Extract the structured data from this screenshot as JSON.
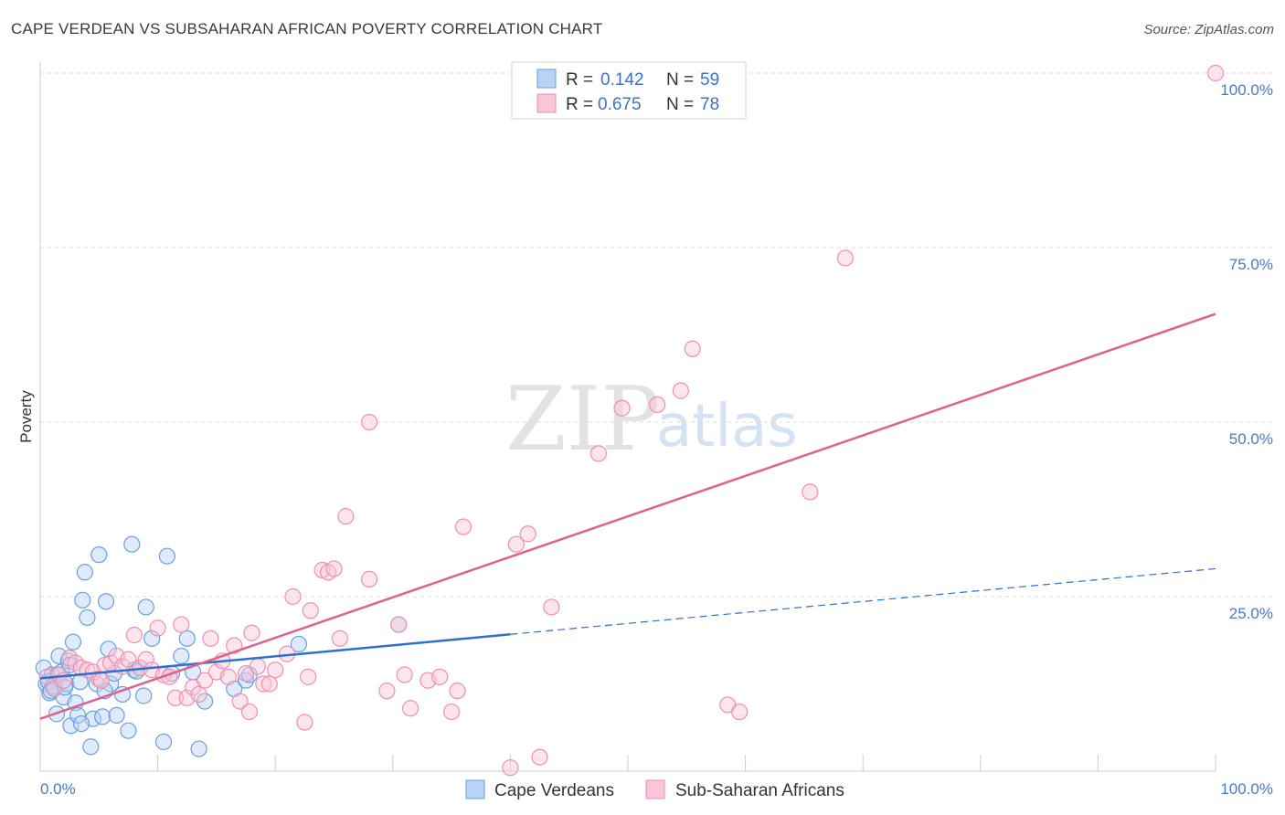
{
  "header": {
    "title": "CAPE VERDEAN VS SUBSAHARAN AFRICAN POVERTY CORRELATION CHART",
    "source": "Source: ZipAtlas.com"
  },
  "watermark": {
    "zip": "ZIP",
    "atlas": "atlas"
  },
  "colors": {
    "blue": "#6a9fe0",
    "blue_fill": "#b9d3f5",
    "blue_line": "#2f6fd0",
    "pink": "#ec8fb0",
    "pink_fill": "#f8c6d8",
    "pink_line": "#e0608e",
    "grid": "#dddddd",
    "tick_text": "#4a79c4"
  },
  "chart_data": {
    "type": "scatter",
    "title": "CAPE VERDEAN VS SUBSAHARAN AFRICAN POVERTY CORRELATION CHART",
    "xlabel": "",
    "ylabel": "Poverty",
    "xlim": [
      0,
      100
    ],
    "ylim": [
      0,
      100
    ],
    "x_tick_labels": {
      "left": "0.0%",
      "right": "100.0%"
    },
    "y_ticks": [
      {
        "value": 25,
        "label": "25.0%"
      },
      {
        "value": 50,
        "label": "50.0%"
      },
      {
        "value": 75,
        "label": "75.0%"
      },
      {
        "value": 100,
        "label": "100.0%"
      }
    ],
    "legend": {
      "placement": "top-center",
      "entries": [
        {
          "r_label": "R =",
          "r_value": "0.142",
          "n_label": "N =",
          "n_value": "59"
        },
        {
          "r_label": "R =",
          "r_value": "0.675",
          "n_label": "N =",
          "n_value": "78"
        }
      ]
    },
    "series": [
      {
        "name": "Cape Verdeans",
        "color": "#6a9fe0",
        "trend": {
          "x0": 0,
          "y0": 13.3,
          "x1": 40,
          "y1": 19.6,
          "dashed_to_x": 100,
          "dashed_to_y": 29.0
        },
        "points": [
          [
            0.3,
            14.8
          ],
          [
            0.5,
            12.5
          ],
          [
            0.8,
            11.2
          ],
          [
            1.0,
            13.8
          ],
          [
            1.2,
            12.0
          ],
          [
            1.4,
            8.2
          ],
          [
            1.6,
            16.5
          ],
          [
            1.8,
            14.2
          ],
          [
            2.0,
            10.6
          ],
          [
            2.2,
            12.5
          ],
          [
            2.4,
            15.8
          ],
          [
            2.6,
            6.5
          ],
          [
            2.8,
            18.5
          ],
          [
            3.0,
            9.8
          ],
          [
            3.2,
            8.0
          ],
          [
            3.4,
            12.8
          ],
          [
            3.6,
            24.5
          ],
          [
            3.8,
            28.5
          ],
          [
            4.0,
            22.0
          ],
          [
            4.5,
            7.5
          ],
          [
            4.8,
            12.5
          ],
          [
            5.0,
            31.0
          ],
          [
            5.3,
            7.8
          ],
          [
            5.6,
            24.3
          ],
          [
            5.8,
            17.5
          ],
          [
            6.0,
            12.5
          ],
          [
            6.5,
            8.0
          ],
          [
            7.0,
            11.0
          ],
          [
            7.5,
            5.8
          ],
          [
            7.8,
            32.5
          ],
          [
            8.0,
            14.5
          ],
          [
            8.5,
            14.8
          ],
          [
            8.8,
            10.8
          ],
          [
            9.0,
            23.5
          ],
          [
            9.5,
            19.0
          ],
          [
            10.5,
            4.2
          ],
          [
            10.8,
            30.8
          ],
          [
            11.2,
            14.0
          ],
          [
            12.0,
            16.5
          ],
          [
            12.5,
            19.0
          ],
          [
            13.5,
            3.2
          ],
          [
            14.0,
            10.0
          ],
          [
            16.5,
            11.8
          ],
          [
            17.5,
            13.0
          ],
          [
            17.8,
            13.8
          ],
          [
            22.0,
            18.2
          ],
          [
            30.5,
            21.0
          ],
          [
            1.5,
            13.8
          ],
          [
            2.5,
            15.2
          ],
          [
            3.5,
            6.8
          ],
          [
            4.3,
            3.5
          ],
          [
            5.5,
            11.5
          ],
          [
            0.7,
            12.8
          ],
          [
            1.1,
            12.2
          ],
          [
            2.1,
            12.0
          ],
          [
            6.3,
            14.0
          ],
          [
            8.2,
            14.3
          ],
          [
            13.0,
            14.2
          ],
          [
            0.9,
            11.5
          ]
        ]
      },
      {
        "name": "Sub-Saharan Africans",
        "color": "#ec8fb0",
        "trend": {
          "x0": 0,
          "y0": 7.5,
          "x1": 100,
          "y1": 65.5
        },
        "points": [
          [
            0.6,
            13.5
          ],
          [
            1.2,
            11.8
          ],
          [
            1.6,
            13.8
          ],
          [
            2.0,
            13.0
          ],
          [
            2.5,
            16.2
          ],
          [
            3.0,
            15.5
          ],
          [
            3.5,
            14.8
          ],
          [
            4.0,
            14.5
          ],
          [
            4.5,
            14.2
          ],
          [
            5.0,
            13.2
          ],
          [
            5.5,
            15.2
          ],
          [
            6.0,
            15.5
          ],
          [
            6.5,
            16.5
          ],
          [
            7.0,
            15.0
          ],
          [
            7.5,
            16.0
          ],
          [
            8.0,
            19.5
          ],
          [
            8.5,
            14.8
          ],
          [
            9.0,
            16.0
          ],
          [
            9.5,
            14.5
          ],
          [
            10.0,
            20.5
          ],
          [
            10.5,
            13.8
          ],
          [
            11.0,
            13.5
          ],
          [
            11.5,
            10.5
          ],
          [
            12.0,
            21.0
          ],
          [
            12.5,
            10.5
          ],
          [
            13.0,
            12.0
          ],
          [
            13.5,
            11.0
          ],
          [
            14.0,
            13.0
          ],
          [
            14.5,
            19.0
          ],
          [
            15.0,
            14.2
          ],
          [
            15.5,
            15.8
          ],
          [
            16.0,
            13.5
          ],
          [
            16.5,
            18.0
          ],
          [
            17.0,
            10.0
          ],
          [
            17.5,
            14.0
          ],
          [
            17.8,
            8.5
          ],
          [
            18.0,
            19.8
          ],
          [
            18.5,
            15.0
          ],
          [
            19.0,
            12.5
          ],
          [
            19.5,
            12.5
          ],
          [
            20.0,
            14.5
          ],
          [
            21.0,
            16.8
          ],
          [
            21.5,
            25.0
          ],
          [
            22.5,
            7.0
          ],
          [
            22.8,
            13.5
          ],
          [
            23.0,
            23.0
          ],
          [
            24.0,
            28.8
          ],
          [
            24.5,
            28.5
          ],
          [
            25.0,
            29.0
          ],
          [
            25.5,
            19.0
          ],
          [
            26.0,
            36.5
          ],
          [
            28.0,
            50.0
          ],
          [
            28.0,
            27.5
          ],
          [
            29.5,
            11.5
          ],
          [
            30.5,
            21.0
          ],
          [
            31.0,
            13.8
          ],
          [
            31.5,
            9.0
          ],
          [
            33.0,
            13.0
          ],
          [
            34.0,
            13.5
          ],
          [
            35.0,
            8.5
          ],
          [
            35.5,
            11.5
          ],
          [
            36.0,
            35.0
          ],
          [
            40.0,
            0.5
          ],
          [
            40.5,
            32.5
          ],
          [
            41.5,
            34.0
          ],
          [
            42.5,
            2.0
          ],
          [
            43.5,
            23.5
          ],
          [
            47.5,
            45.5
          ],
          [
            49.5,
            52.0
          ],
          [
            52.5,
            52.5
          ],
          [
            54.5,
            54.5
          ],
          [
            55.5,
            60.5
          ],
          [
            58.5,
            9.5
          ],
          [
            59.5,
            8.5
          ],
          [
            65.5,
            40.0
          ],
          [
            68.5,
            73.5
          ],
          [
            100.0,
            100.0
          ],
          [
            5.2,
            13.0
          ]
        ]
      }
    ]
  },
  "bottom_legend": [
    {
      "label": "Cape Verdeans"
    },
    {
      "label": "Sub-Saharan Africans"
    }
  ]
}
